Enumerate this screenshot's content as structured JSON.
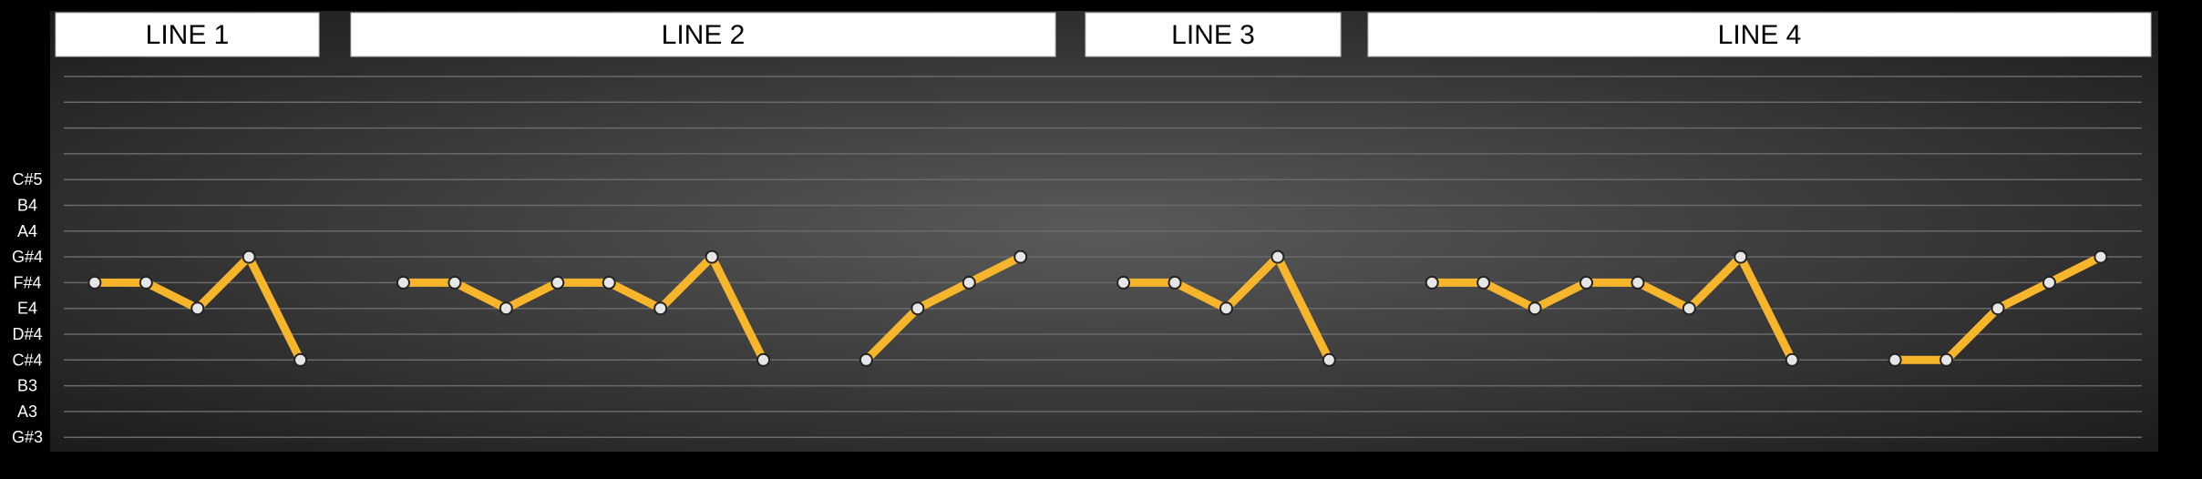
{
  "chart_data": {
    "type": "line",
    "y_ticks": [
      "G#3",
      "A3",
      "B3",
      "C#4",
      "D#4",
      "E4",
      "F#4",
      "G#4",
      "A4",
      "B4",
      "C#5"
    ],
    "gridlines": 15,
    "colors": {
      "line": "#f7b52c",
      "marker_fill": "#e6e6e6",
      "marker_stroke": "#222222",
      "grid": "#6a6a6a",
      "plot_bg_center": "#5a5a5a",
      "plot_bg_edge": "#1c1c1c",
      "header_fill": "#ffffff"
    },
    "lines": [
      {
        "label": "LINE 1"
      },
      {
        "label": "LINE 2"
      },
      {
        "label": "LINE 3"
      },
      {
        "label": "LINE 4"
      }
    ],
    "series": [
      {
        "points": [
          [
            1,
            "F#4"
          ],
          [
            2,
            "F#4"
          ],
          [
            3,
            "E4"
          ],
          [
            4,
            "G#4"
          ],
          [
            5,
            "C#4"
          ]
        ]
      },
      {
        "points": [
          [
            7,
            "F#4"
          ],
          [
            8,
            "F#4"
          ],
          [
            9,
            "E4"
          ],
          [
            10,
            "F#4"
          ],
          [
            11,
            "F#4"
          ],
          [
            12,
            "E4"
          ],
          [
            13,
            "G#4"
          ],
          [
            14,
            "C#4"
          ]
        ]
      },
      {
        "points": [
          [
            16,
            "C#4"
          ],
          [
            17,
            "E4"
          ],
          [
            18,
            "F#4"
          ],
          [
            19,
            "G#4"
          ]
        ]
      },
      {
        "points": [
          [
            21,
            "F#4"
          ],
          [
            22,
            "F#4"
          ],
          [
            23,
            "E4"
          ],
          [
            24,
            "G#4"
          ],
          [
            25,
            "C#4"
          ]
        ]
      },
      {
        "points": [
          [
            27,
            "F#4"
          ],
          [
            28,
            "F#4"
          ],
          [
            29,
            "E4"
          ],
          [
            30,
            "F#4"
          ],
          [
            31,
            "F#4"
          ],
          [
            32,
            "E4"
          ],
          [
            33,
            "G#4"
          ],
          [
            34,
            "C#4"
          ]
        ]
      },
      {
        "points": [
          [
            36,
            "C#4"
          ],
          [
            37,
            "C#4"
          ],
          [
            38,
            "E4"
          ],
          [
            39,
            "F#4"
          ],
          [
            40,
            "G#4"
          ]
        ]
      }
    ],
    "x_range": [
      0.4,
      40.8
    ]
  }
}
